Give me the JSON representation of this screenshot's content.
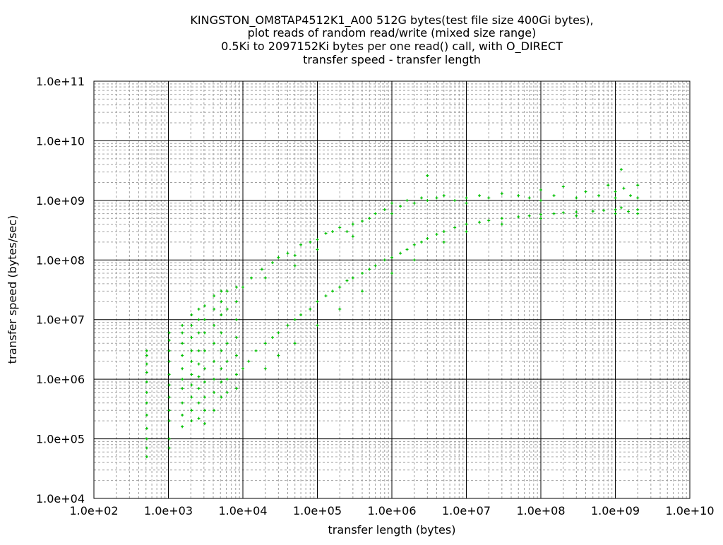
{
  "chart_data": {
    "type": "scatter",
    "title_lines": [
      "KINGSTON_OM8TAP4512K1_A00 512G bytes(test file size 400Gi bytes),",
      "plot reads of random read/write (mixed size range)",
      "0.5Ki to 2097152Ki bytes per one read() call, with O_DIRECT",
      "transfer speed - transfer length"
    ],
    "xlabel": "transfer length (bytes)",
    "ylabel": "transfer speed (bytes/sec)",
    "xscale": "log",
    "yscale": "log",
    "xlim": [
      100,
      10000000000
    ],
    "ylim": [
      10000,
      100000000000
    ],
    "xticks": [
      "1.0e+02",
      "1.0e+03",
      "1.0e+04",
      "1.0e+05",
      "1.0e+06",
      "1.0e+07",
      "1.0e+08",
      "1.0e+09",
      "1.0e+10"
    ],
    "yticks": [
      "1.0e+04",
      "1.0e+05",
      "1.0e+06",
      "1.0e+07",
      "1.0e+08",
      "1.0e+09",
      "1.0e+10",
      "1.0e+11"
    ],
    "grid": true,
    "marker": "plus",
    "color": "#00c000",
    "points": [
      [
        512,
        50000.0
      ],
      [
        512,
        70000.0
      ],
      [
        512,
        100000.0
      ],
      [
        512,
        150000.0
      ],
      [
        512,
        250000.0
      ],
      [
        512,
        400000.0
      ],
      [
        512,
        600000.0
      ],
      [
        512,
        900000.0
      ],
      [
        512,
        1300000.0
      ],
      [
        512,
        1800000.0
      ],
      [
        512,
        2500000.0
      ],
      [
        512,
        3000000.0
      ],
      [
        1024,
        70000.0
      ],
      [
        1024,
        100000.0
      ],
      [
        1024,
        200000.0
      ],
      [
        1024,
        300000.0
      ],
      [
        1024,
        500000.0
      ],
      [
        1024,
        800000.0
      ],
      [
        1024,
        1200000.0
      ],
      [
        1024,
        2000000.0
      ],
      [
        1024,
        3000000.0
      ],
      [
        1024,
        4500000.0
      ],
      [
        1024,
        6000000.0
      ],
      [
        1536,
        160000.0
      ],
      [
        1536,
        250000.0
      ],
      [
        1536,
        400000.0
      ],
      [
        1536,
        700000.0
      ],
      [
        1536,
        1000000.0
      ],
      [
        1536,
        1500000.0
      ],
      [
        1536,
        2500000.0
      ],
      [
        1536,
        4000000.0
      ],
      [
        1536,
        6000000.0
      ],
      [
        1536,
        8000000.0
      ],
      [
        2048,
        200000.0
      ],
      [
        2048,
        300000.0
      ],
      [
        2048,
        500000.0
      ],
      [
        2048,
        800000.0
      ],
      [
        2048,
        1200000.0
      ],
      [
        2048,
        2000000.0
      ],
      [
        2048,
        3000000.0
      ],
      [
        2048,
        5000000.0
      ],
      [
        2048,
        8000000.0
      ],
      [
        2048,
        12000000.0
      ],
      [
        2560,
        220000.0
      ],
      [
        2560,
        400000.0
      ],
      [
        2560,
        700000.0
      ],
      [
        2560,
        1100000.0
      ],
      [
        2560,
        1800000.0
      ],
      [
        2560,
        3000000.0
      ],
      [
        2560,
        6000000.0
      ],
      [
        2560,
        10000000.0
      ],
      [
        2560,
        15000000.0
      ],
      [
        3072,
        180000.0
      ],
      [
        3072,
        300000.0
      ],
      [
        3072,
        500000.0
      ],
      [
        3072,
        900000.0
      ],
      [
        3072,
        1500000.0
      ],
      [
        3072,
        3000000.0
      ],
      [
        3072,
        6000000.0
      ],
      [
        3072,
        10000000.0
      ],
      [
        3072,
        17000000.0
      ],
      [
        4096,
        300000.0
      ],
      [
        4096,
        600000.0
      ],
      [
        4096,
        1000000.0
      ],
      [
        4096,
        2000000.0
      ],
      [
        4096,
        4000000.0
      ],
      [
        4096,
        8000000.0
      ],
      [
        4096,
        15000000.0
      ],
      [
        4096,
        25000000.0
      ],
      [
        5120,
        500000.0
      ],
      [
        5120,
        900000.0
      ],
      [
        5120,
        1500000.0
      ],
      [
        5120,
        3000000.0
      ],
      [
        5120,
        6000000.0
      ],
      [
        5120,
        12000000.0
      ],
      [
        5120,
        20000000.0
      ],
      [
        5120,
        30000000.0
      ],
      [
        6144,
        600000.0
      ],
      [
        6144,
        1000000.0
      ],
      [
        6144,
        2000000.0
      ],
      [
        6144,
        4000000.0
      ],
      [
        6144,
        15000000.0
      ],
      [
        6144,
        30000000.0
      ],
      [
        8192,
        700000.0
      ],
      [
        8192,
        1200000.0
      ],
      [
        8192,
        2500000.0
      ],
      [
        8192,
        5000000.0
      ],
      [
        8192,
        10000000.0
      ],
      [
        8192,
        20000000.0
      ],
      [
        8192,
        35000000.0
      ],
      [
        10000.0,
        35000000.0
      ],
      [
        13000.0,
        50000000.0
      ],
      [
        18000.0,
        70000000.0
      ],
      [
        25000.0,
        90000000.0
      ],
      [
        30000.0,
        110000000.0
      ],
      [
        40000.0,
        130000000.0
      ],
      [
        50000.0,
        120000000.0
      ],
      [
        60000.0,
        180000000.0
      ],
      [
        80000.0,
        200000000.0
      ],
      [
        100000.0,
        220000000.0
      ],
      [
        130000.0,
        280000000.0
      ],
      [
        160000.0,
        300000000.0
      ],
      [
        200000.0,
        350000000.0
      ],
      [
        250000.0,
        300000000.0
      ],
      [
        300000.0,
        400000000.0
      ],
      [
        400000.0,
        450000000.0
      ],
      [
        500000.0,
        500000000.0
      ],
      [
        600000.0,
        600000000.0
      ],
      [
        800000.0,
        700000000.0
      ],
      [
        1000000.0,
        900000000.0
      ],
      [
        1300000.0,
        800000000.0
      ],
      [
        1600000.0,
        1000000000.0
      ],
      [
        2000000.0,
        900000000.0
      ],
      [
        2500000.0,
        1100000000.0
      ],
      [
        3000000.0,
        1000000000.0
      ],
      [
        4000000.0,
        1100000000.0
      ],
      [
        5000000.0,
        1200000000.0
      ],
      [
        7000000.0,
        1000000000.0
      ],
      [
        10000000.0,
        1100000000.0
      ],
      [
        15000000.0,
        1200000000.0
      ],
      [
        20000000.0,
        1100000000.0
      ],
      [
        30000000.0,
        1300000000.0
      ],
      [
        50000000.0,
        1200000000.0
      ],
      [
        70000000.0,
        1100000000.0
      ],
      [
        100000000.0,
        1500000000.0
      ],
      [
        150000000.0,
        1200000000.0
      ],
      [
        200000000.0,
        1700000000.0
      ],
      [
        300000000.0,
        1100000000.0
      ],
      [
        400000000.0,
        1400000000.0
      ],
      [
        600000000.0,
        1200000000.0
      ],
      [
        800000000.0,
        1800000000.0
      ],
      [
        1000000000.0,
        1100000000.0
      ],
      [
        1300000000.0,
        1600000000.0
      ],
      [
        1600000000.0,
        1200000000.0
      ],
      [
        2000000000.0,
        1800000000.0
      ],
      [
        2000000000.0,
        1100000000.0
      ],
      [
        1200000000.0,
        3300000000.0
      ],
      [
        3000000.0,
        2600000000.0
      ],
      [
        10000.0,
        1500000.0
      ],
      [
        12000.0,
        2000000.0
      ],
      [
        15000.0,
        3000000.0
      ],
      [
        20000.0,
        4000000.0
      ],
      [
        25000.0,
        5000000.0
      ],
      [
        30000.0,
        6000000.0
      ],
      [
        40000.0,
        8000000.0
      ],
      [
        50000.0,
        10000000.0
      ],
      [
        60000.0,
        12000000.0
      ],
      [
        80000.0,
        15000000.0
      ],
      [
        100000.0,
        20000000.0
      ],
      [
        130000.0,
        25000000.0
      ],
      [
        160000.0,
        30000000.0
      ],
      [
        200000.0,
        35000000.0
      ],
      [
        250000.0,
        45000000.0
      ],
      [
        300000.0,
        50000000.0
      ],
      [
        400000.0,
        60000000.0
      ],
      [
        500000.0,
        70000000.0
      ],
      [
        600000.0,
        80000000.0
      ],
      [
        800000.0,
        100000000.0
      ],
      [
        1000000.0,
        110000000.0
      ],
      [
        1300000.0,
        130000000.0
      ],
      [
        1600000.0,
        150000000.0
      ],
      [
        2000000.0,
        180000000.0
      ],
      [
        2500000.0,
        200000000.0
      ],
      [
        3000000.0,
        230000000.0
      ],
      [
        4000000.0,
        270000000.0
      ],
      [
        5000000.0,
        300000000.0
      ],
      [
        7000000.0,
        350000000.0
      ],
      [
        10000000.0,
        400000000.0
      ],
      [
        15000000.0,
        430000000.0
      ],
      [
        20000000.0,
        460000000.0
      ],
      [
        30000000.0,
        500000000.0
      ],
      [
        50000000.0,
        530000000.0
      ],
      [
        70000000.0,
        550000000.0
      ],
      [
        100000000.0,
        580000000.0
      ],
      [
        150000000.0,
        600000000.0
      ],
      [
        200000000.0,
        620000000.0
      ],
      [
        300000000.0,
        640000000.0
      ],
      [
        500000000.0,
        660000000.0
      ],
      [
        700000000.0,
        680000000.0
      ],
      [
        1000000000.0,
        700000000.0
      ],
      [
        1500000000.0,
        650000000.0
      ],
      [
        2000000000.0,
        700000000.0
      ],
      [
        2000000000.0,
        600000000.0
      ],
      [
        1200000000.0,
        750000000.0
      ],
      [
        20000.0,
        1500000.0
      ],
      [
        30000.0,
        2500000.0
      ],
      [
        50000.0,
        4000000.0
      ],
      [
        100000.0,
        8000000.0
      ],
      [
        200000.0,
        15000000.0
      ],
      [
        400000.0,
        30000000.0
      ],
      [
        1000000.0,
        60000000.0
      ],
      [
        2000000.0,
        100000000.0
      ],
      [
        5000000.0,
        200000000.0
      ],
      [
        10000000.0,
        300000000.0
      ],
      [
        30000000.0,
        400000000.0
      ],
      [
        100000000.0,
        500000000.0
      ],
      [
        300000000.0,
        550000000.0
      ],
      [
        1000000000.0,
        600000000.0
      ],
      [
        20000.0,
        50000000.0
      ],
      [
        50000.0,
        80000000.0
      ],
      [
        100000.0,
        150000000.0
      ],
      [
        300000.0,
        250000000.0
      ],
      [
        1000000.0,
        600000000.0
      ],
      [
        10000000.0,
        900000000.0
      ],
      [
        100000000.0,
        1000000000.0
      ],
      [
        1000000000.0,
        1400000000.0
      ]
    ]
  }
}
